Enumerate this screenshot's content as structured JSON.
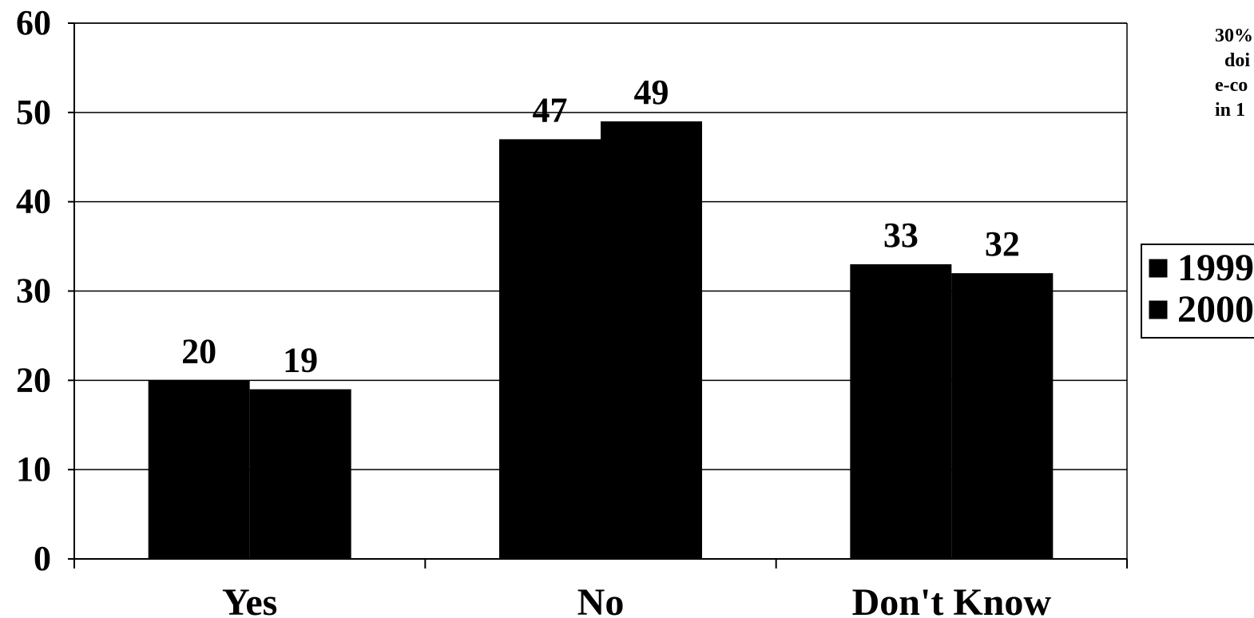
{
  "chart_data": {
    "type": "bar",
    "title": "",
    "xlabel": "",
    "ylabel": "",
    "categories": [
      "Yes",
      "No",
      "Don't Know"
    ],
    "series": [
      {
        "name": "1999",
        "values": [
          20,
          47,
          33
        ]
      },
      {
        "name": "2000",
        "values": [
          19,
          49,
          32
        ]
      }
    ],
    "data_labels": [
      [
        "20",
        "47",
        "33"
      ],
      [
        "19",
        "49",
        "32"
      ]
    ],
    "ylim": [
      0,
      60
    ],
    "yticks": [
      0,
      10,
      20,
      30,
      40,
      50,
      60
    ],
    "ytick_labels": [
      "0",
      "10",
      "20",
      "30",
      "40",
      "50",
      "60"
    ],
    "grid": true,
    "legend_position": "right",
    "annotation_lines": [
      "30%",
      " doi",
      "e-co",
      "in 1"
    ],
    "colors": {
      "bars": "#000000",
      "background": "#ffffff",
      "grid": "#000000"
    }
  }
}
